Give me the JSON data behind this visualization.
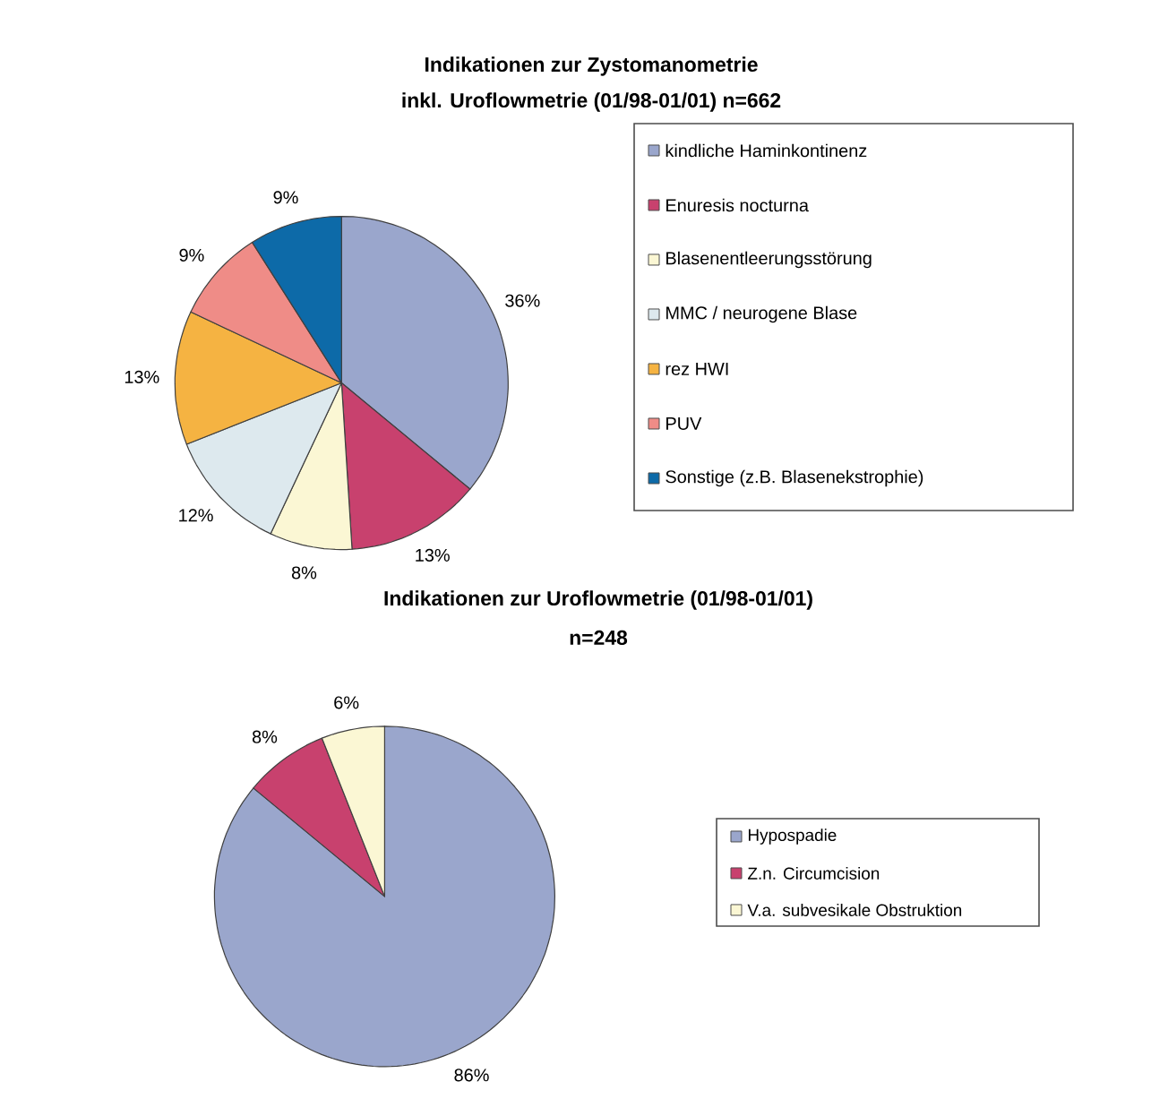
{
  "chart_data": [
    {
      "type": "pie",
      "title": "Indikationen zur Zystomanometrie",
      "subtitle": "inkl. Uroflowmetrie (01/98-01/01) n=662",
      "categories": [
        "kindliche Haminkontinenz",
        "Enuresis nocturna",
        "Blasenentleerungsstörung",
        "MMC / neurogene Blase",
        "rez HWI",
        "PUV",
        "Sonstige (z.B. Blasenekstrophie)"
      ],
      "values": [
        36,
        13,
        8,
        12,
        13,
        9,
        9
      ],
      "value_labels": [
        "36%",
        "13%",
        "8%",
        "12%",
        "13%",
        "9%",
        "9%"
      ],
      "colors": [
        "#9aa6cc",
        "#c8416e",
        "#fbf7d4",
        "#dde9ee",
        "#f5b342",
        "#ef8c87",
        "#0d6aa8"
      ],
      "legend": "right"
    },
    {
      "type": "pie",
      "title": "Indikationen zur Uroflowmetrie (01/98-01/01)",
      "subtitle": "n=248",
      "categories": [
        "Hypospadie",
        "Z.n. Circumcision",
        "V.a. subvesikale Obstruktion"
      ],
      "values": [
        86,
        8,
        6
      ],
      "value_labels": [
        "86%",
        "8%",
        "6%"
      ],
      "colors": [
        "#9aa6cc",
        "#c8416e",
        "#fbf7d4"
      ],
      "legend": "right"
    }
  ]
}
